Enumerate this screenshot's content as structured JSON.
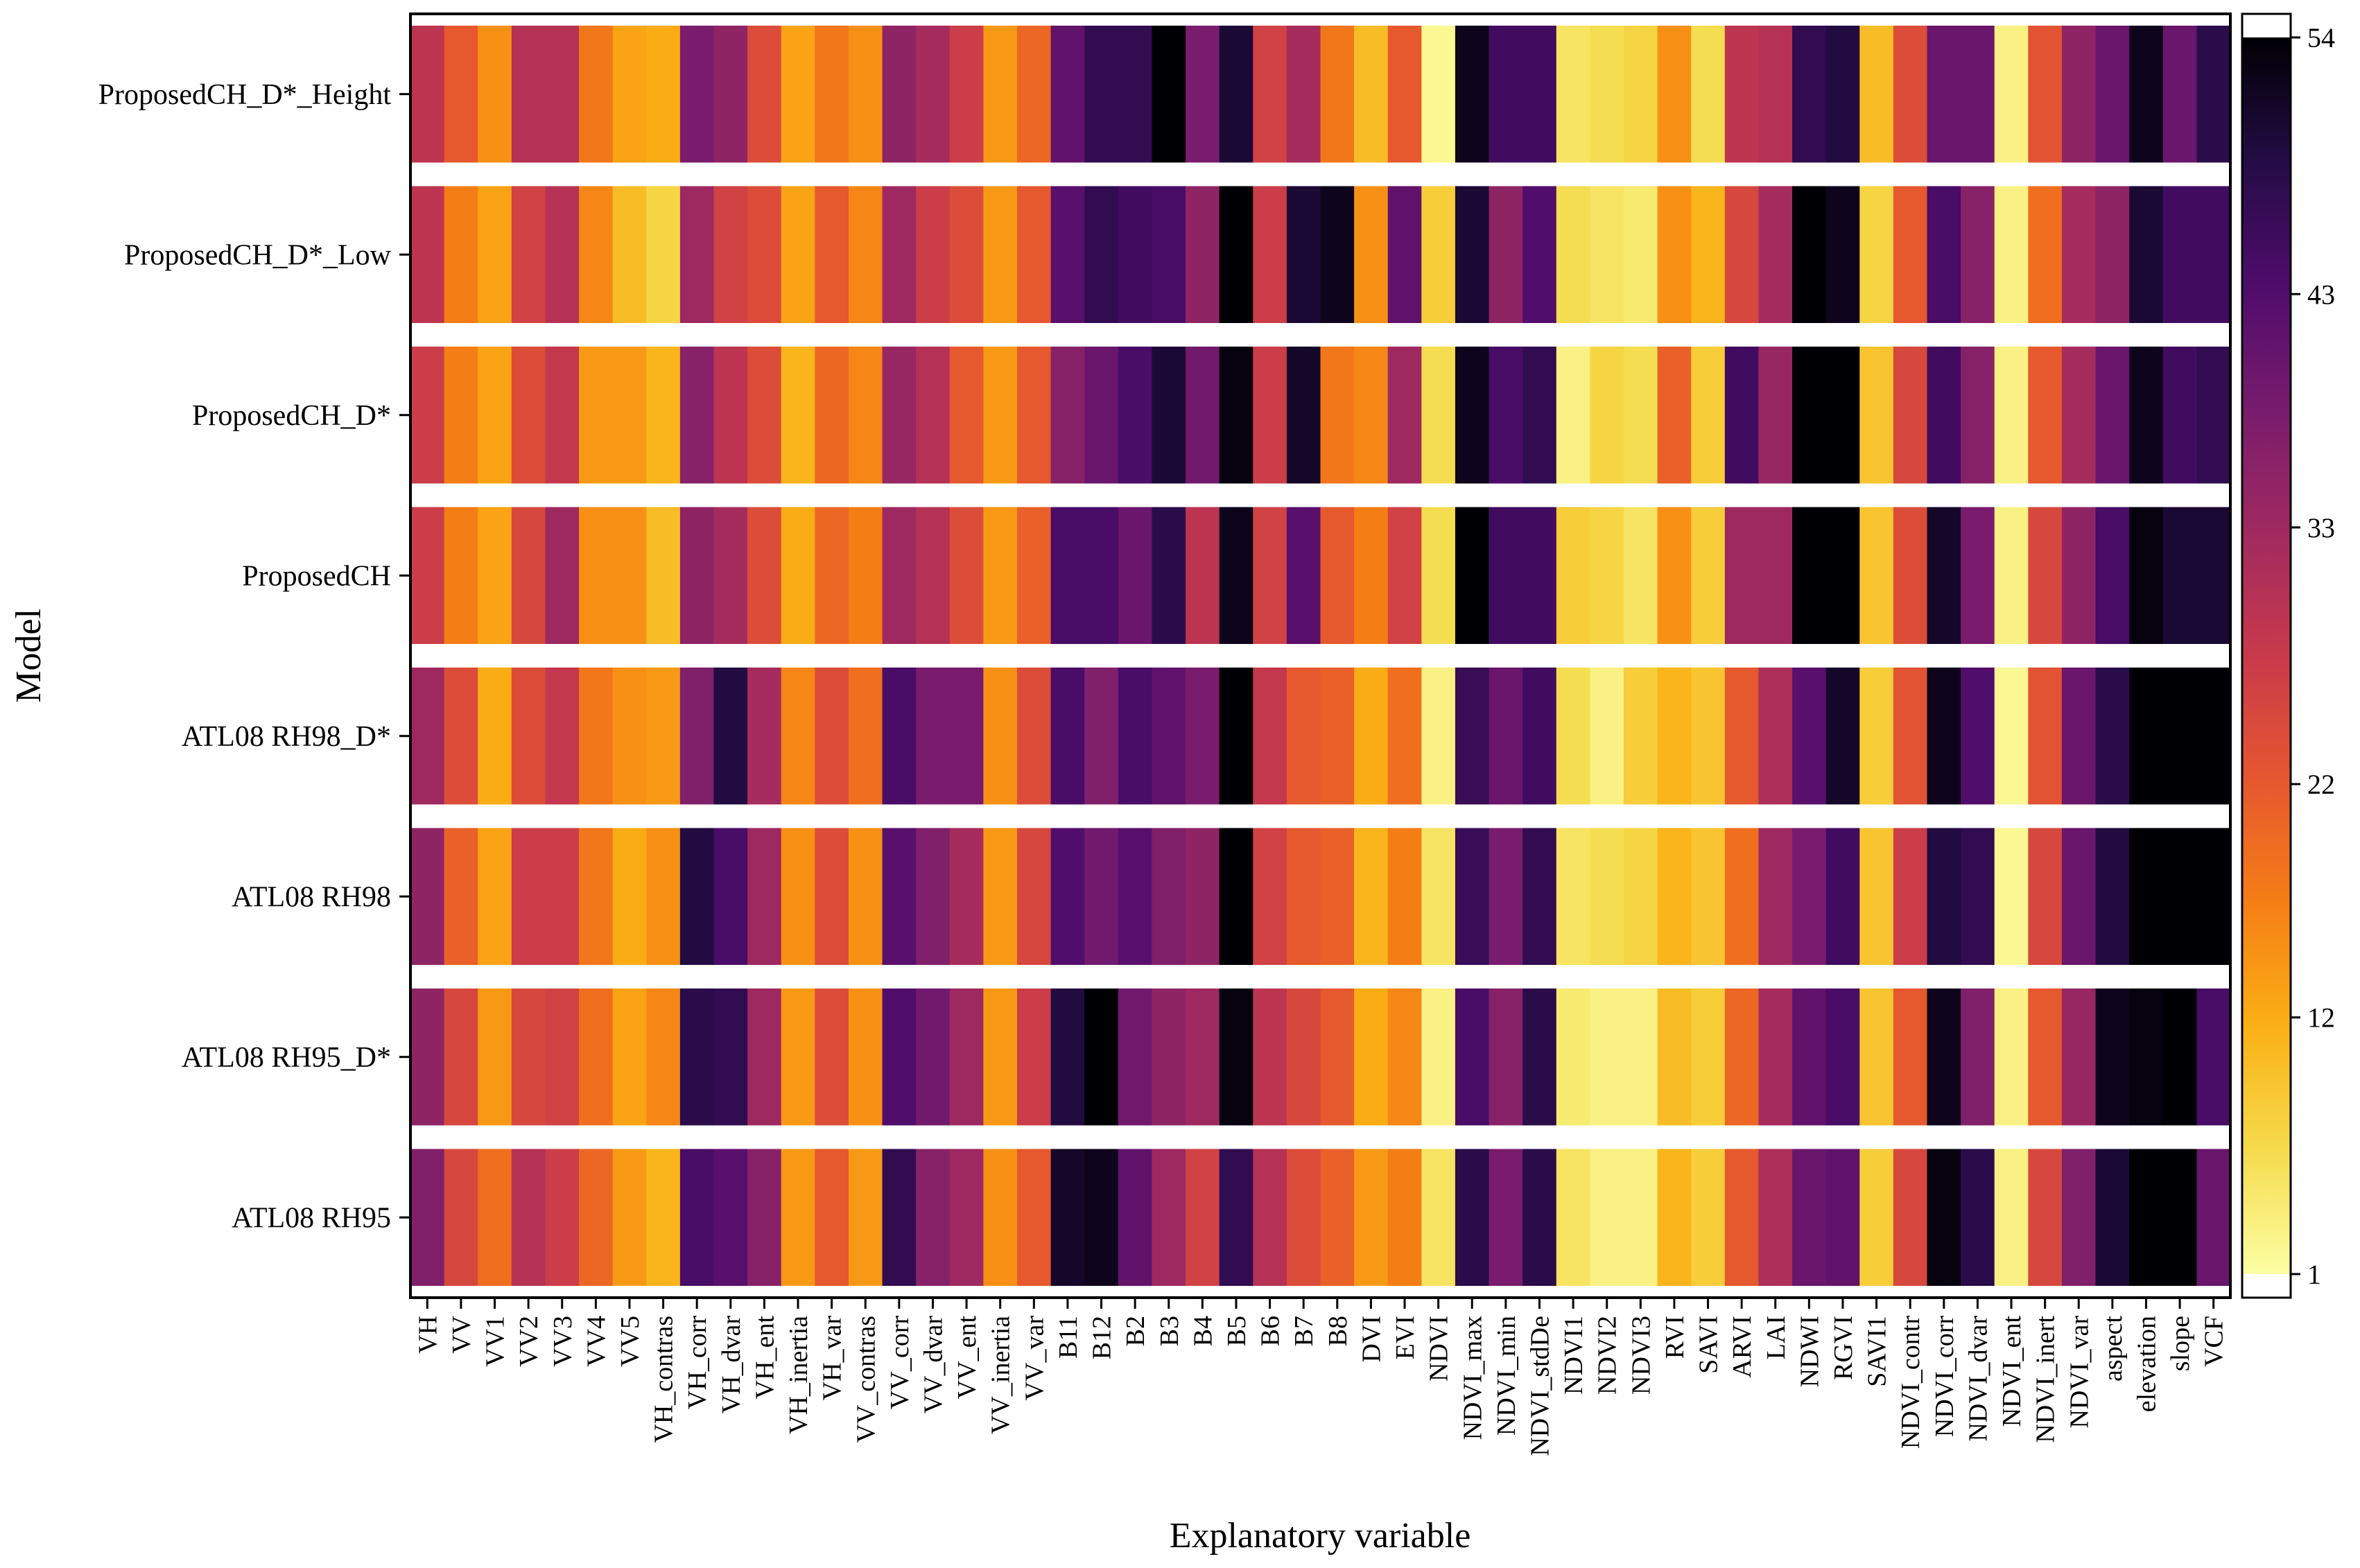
{
  "chart_data": {
    "type": "heatmap",
    "xlabel": "Explanatory variable",
    "ylabel": "Model",
    "x": [
      "VH",
      "VV",
      "VV1",
      "VV2",
      "VV3",
      "VV4",
      "VV5",
      "VH_contras",
      "VH_corr",
      "VH_dvar",
      "VH_ent",
      "VH_inertia",
      "VH_var",
      "VV_contras",
      "VV_corr",
      "VV_dvar",
      "VV_ent",
      "VV_inertia",
      "VV_var",
      "B11",
      "B12",
      "B2",
      "B3",
      "B4",
      "B5",
      "B6",
      "B7",
      "B8",
      "DVI",
      "EVI",
      "NDVI",
      "NDVI_max",
      "NDVI_min",
      "NDVI_stdDe",
      "NDVI1",
      "NDVI2",
      "NDVI3",
      "RVI",
      "SAVI",
      "ARVI",
      "LAI",
      "NDWI",
      "RGVI",
      "SAVI1",
      "NDVI_contr",
      "NDVI_corr",
      "NDVI_dvar",
      "NDVI_ent",
      "NDVI_inert",
      "NDVI_var",
      "aspect",
      "elevation",
      "slope",
      "VCF"
    ],
    "y": [
      "ProposedCH_D*_Height",
      "ProposedCH_D*_Low",
      "ProposedCH_D*",
      "ProposedCH",
      "ATL08 RH98_D*",
      "ATL08 RH98",
      "ATL08 RH95_D*",
      "ATL08 RH95"
    ],
    "values": [
      [
        29,
        22,
        15,
        30,
        30,
        18,
        13,
        12,
        38,
        35,
        24,
        13,
        18,
        15,
        35,
        32,
        27,
        14,
        20,
        41,
        47,
        47,
        54,
        38,
        50,
        26,
        32,
        18,
        10,
        22,
        2,
        52,
        45,
        45,
        5,
        6,
        7,
        15,
        6,
        29,
        30,
        47,
        49,
        10,
        24,
        40,
        40,
        3,
        23,
        35,
        40,
        52,
        40,
        48
      ],
      [
        29,
        17,
        13,
        26,
        30,
        16,
        10,
        7,
        33,
        26,
        24,
        13,
        22,
        16,
        33,
        27,
        24,
        14,
        22,
        42,
        47,
        45,
        44,
        35,
        54,
        27,
        50,
        52,
        15,
        41,
        8,
        50,
        35,
        43,
        6,
        5,
        4,
        15,
        11,
        25,
        32,
        54,
        52,
        7,
        22,
        44,
        36,
        3,
        19,
        32,
        35,
        50,
        45,
        45
      ],
      [
        27,
        17,
        13,
        24,
        28,
        14,
        14,
        11,
        36,
        29,
        24,
        11,
        20,
        16,
        34,
        30,
        22,
        14,
        22,
        36,
        40,
        44,
        50,
        39,
        53,
        27,
        51,
        18,
        16,
        33,
        6,
        52,
        44,
        47,
        3,
        7,
        6,
        21,
        8,
        45,
        34,
        54,
        54,
        9,
        25,
        45,
        36,
        3,
        22,
        32,
        40,
        52,
        45,
        47
      ],
      [
        27,
        17,
        13,
        25,
        33,
        15,
        15,
        10,
        35,
        32,
        24,
        12,
        20,
        17,
        33,
        30,
        24,
        14,
        21,
        44,
        44,
        40,
        48,
        29,
        52,
        26,
        42,
        22,
        17,
        26,
        6,
        54,
        45,
        45,
        8,
        7,
        5,
        15,
        8,
        33,
        33,
        54,
        54,
        9,
        24,
        51,
        38,
        3,
        25,
        35,
        44,
        53,
        50,
        50
      ],
      [
        33,
        24,
        12,
        24,
        28,
        18,
        15,
        14,
        37,
        49,
        32,
        16,
        24,
        19,
        44,
        38,
        38,
        15,
        24,
        44,
        37,
        44,
        41,
        38,
        54,
        28,
        22,
        21,
        12,
        19,
        3,
        46,
        40,
        45,
        6,
        3,
        8,
        11,
        9,
        22,
        31,
        42,
        51,
        8,
        23,
        52,
        43,
        2,
        23,
        40,
        48,
        54,
        54,
        54
      ],
      [
        35,
        21,
        13,
        27,
        27,
        18,
        12,
        15,
        49,
        44,
        33,
        15,
        24,
        15,
        42,
        37,
        32,
        14,
        25,
        43,
        39,
        42,
        37,
        35,
        54,
        26,
        22,
        21,
        11,
        17,
        5,
        46,
        38,
        47,
        5,
        6,
        7,
        11,
        9,
        19,
        33,
        38,
        45,
        9,
        27,
        49,
        47,
        2,
        25,
        40,
        49,
        54,
        54,
        54
      ],
      [
        35,
        25,
        14,
        25,
        26,
        19,
        13,
        16,
        48,
        47,
        33,
        14,
        24,
        15,
        43,
        39,
        33,
        14,
        27,
        49,
        54,
        39,
        35,
        33,
        53,
        29,
        25,
        22,
        12,
        16,
        3,
        44,
        36,
        48,
        4,
        3,
        3,
        10,
        8,
        20,
        32,
        41,
        44,
        9,
        22,
        52,
        37,
        3,
        22,
        34,
        52,
        53,
        54,
        44
      ],
      [
        37,
        25,
        19,
        30,
        27,
        20,
        14,
        11,
        44,
        42,
        36,
        14,
        22,
        14,
        47,
        36,
        33,
        15,
        22,
        51,
        52,
        41,
        33,
        26,
        47,
        30,
        24,
        21,
        14,
        17,
        5,
        48,
        38,
        48,
        5,
        3,
        3,
        11,
        8,
        22,
        31,
        40,
        41,
        8,
        25,
        53,
        48,
        3,
        25,
        37,
        50,
        54,
        54,
        40
      ]
    ],
    "colorbar": {
      "min": 1,
      "max": 54,
      "ticks": [
        1,
        12,
        22,
        33,
        43,
        54
      ]
    },
    "colormap": "inferno_r",
    "colors": {
      "background": "#ffffff",
      "axis": "#000000",
      "row_gap": "#ffffff"
    }
  }
}
